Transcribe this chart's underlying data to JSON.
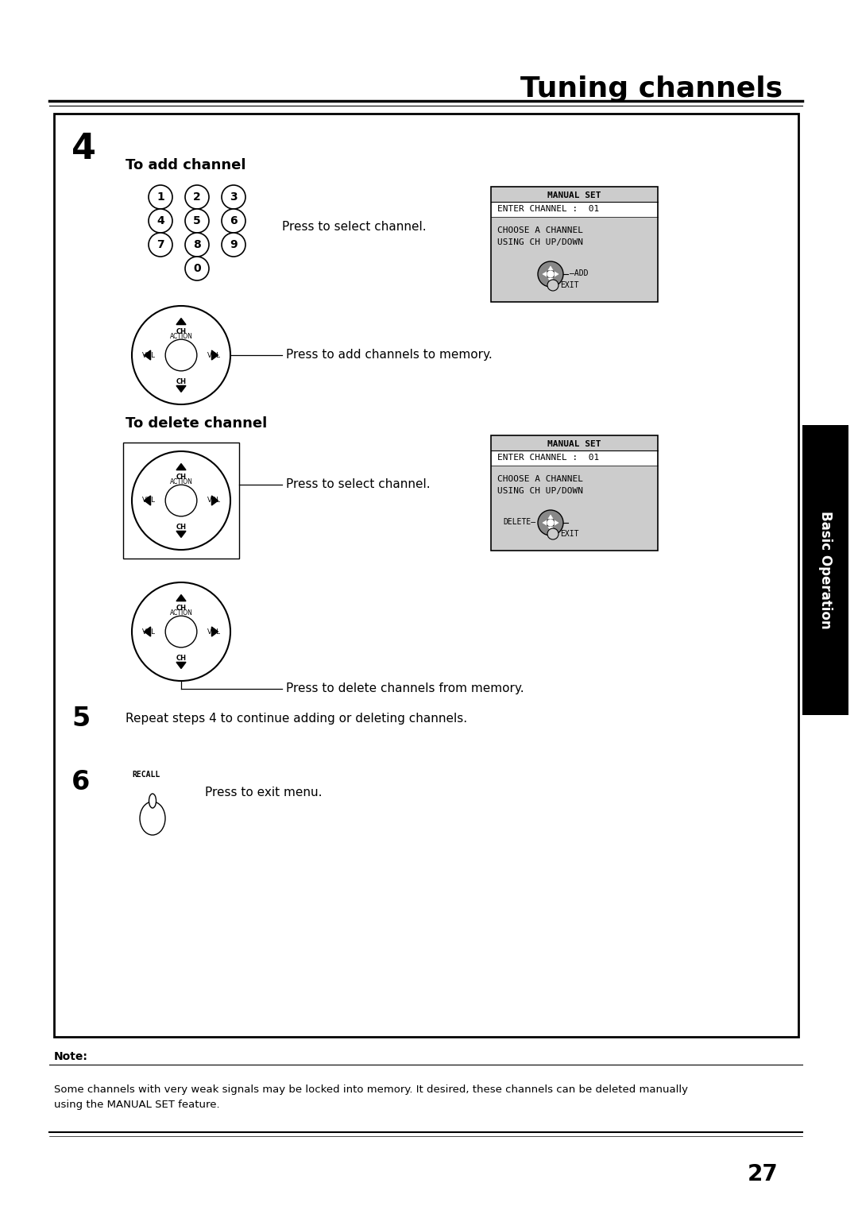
{
  "title": "Tuning channels",
  "bg_color": "#ffffff",
  "step4_label": "4",
  "add_channel_title": "To add channel",
  "delete_channel_title": "To delete channel",
  "step5_label": "5",
  "step5_text": "Repeat steps 4 to continue adding or deleting channels.",
  "step6_label": "6",
  "step6_text": "Press to exit menu.",
  "recall_label": "RECALL",
  "press_select_channel": "Press to select channel.",
  "press_add_memory": "Press to add channels to memory.",
  "press_delete_memory": "Press to delete channels from memory.",
  "note_title": "Note:",
  "note_text": "Some channels with very weak signals may be locked into memory. It desired, these channels can be deleted manually\nusing the MANUAL SET feature.",
  "page_number": "27",
  "sidebar_text": "Basic Operation",
  "sidebar_color": "#000000",
  "manual_set_title": "MANUAL SET",
  "manual_set_enter": "ENTER CHANNEL :  01",
  "manual_set_choose": "CHOOSE A CHANNEL\nUSING CH UP/DOWN",
  "manual_set_add": "ADD",
  "manual_set_exit": "EXIT",
  "manual_set_delete": "DELETE",
  "ms_bg": "#cccccc",
  "digit_buttons": [
    "1",
    "2",
    "3",
    "4",
    "5",
    "6",
    "7",
    "8",
    "9",
    "0"
  ]
}
